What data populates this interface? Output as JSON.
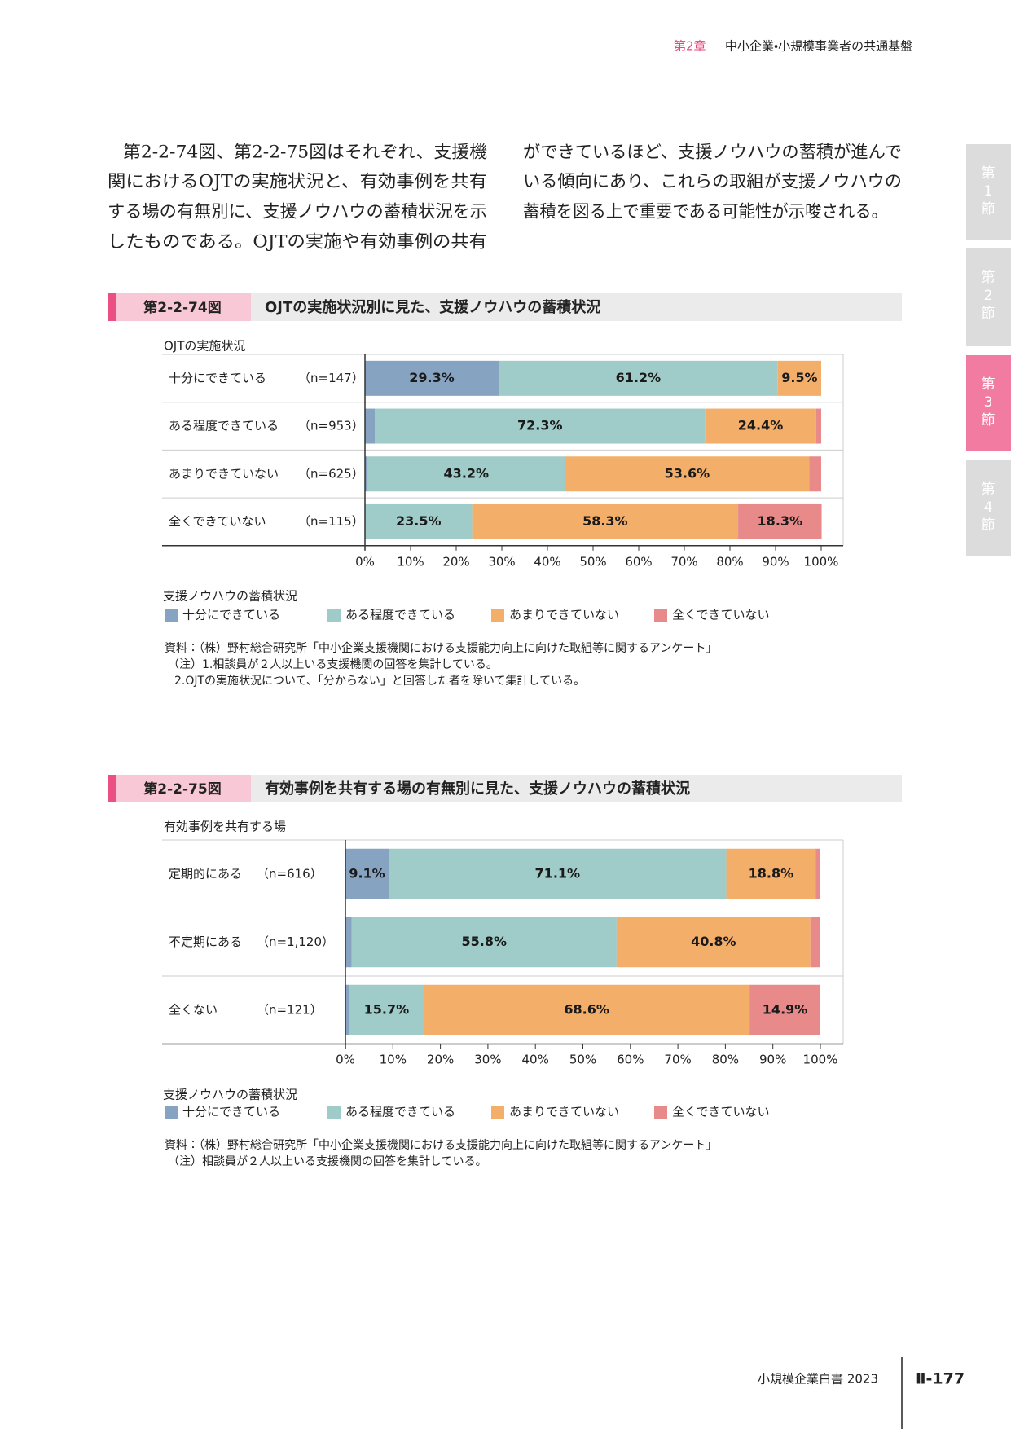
{
  "header": {
    "chapter": "第2章",
    "title": "中小企業・小規模事業者の共通基盤"
  },
  "body": {
    "left": [
      "第2-2-74図、第2-2-75図はそれぞれ、支援機",
      "関におけるOJTの実施状況と、有効事例を共有",
      "する場の有無別に、支援ノウハウの蓄積状況を示",
      "したものである。OJTの実施や有効事例の共有"
    ],
    "right": [
      "ができているほど、支援ノウハウの蓄積が進んで",
      "いる傾向にあり、これらの取組が支援ノウハウの",
      "蓄積を図る上で重要である可能性が示唆される。"
    ]
  },
  "side_tabs": [
    "第1節",
    "第2節",
    "第3節",
    "第4節"
  ],
  "chart_data": [
    {
      "type": "bar",
      "orientation": "horizontal",
      "stacked": true,
      "figure": "第2-2-74図",
      "title": "OJTの実施状況別に見た、支援ノウハウの蓄積状況",
      "category_axis_title": "OJTの実施状況",
      "categories": [
        "十分にできている",
        "ある程度できている",
        "あまりできていない",
        "全くできていない"
      ],
      "sample_sizes": [
        "（n=147）",
        "（n=953）",
        "（n=625）",
        "（n=115）"
      ],
      "series": [
        {
          "name": "十分にできている",
          "color": "#87a3c2",
          "values": [
            29.3,
            2.2,
            0.6,
            0
          ],
          "value_labels": [
            "29.3%",
            null,
            null,
            null
          ]
        },
        {
          "name": "ある程度できている",
          "color": "#9fcbc8",
          "values": [
            61.2,
            72.3,
            43.2,
            23.5
          ],
          "value_labels": [
            "61.2%",
            "72.3%",
            "43.2%",
            "23.5%"
          ]
        },
        {
          "name": "あまりできていない",
          "color": "#f3ae6a",
          "values": [
            9.5,
            24.4,
            53.6,
            58.3
          ],
          "value_labels": [
            "9.5%",
            "24.4%",
            "53.6%",
            "58.3%"
          ]
        },
        {
          "name": "全くできていない",
          "color": "#e88a8a",
          "values": [
            0,
            1.1,
            2.6,
            18.3
          ],
          "value_labels": [
            null,
            null,
            null,
            "18.3%"
          ]
        }
      ],
      "xlim": [
        0,
        100
      ],
      "xticks": [
        {
          "value": 0,
          "label": "0%"
        },
        {
          "value": 10,
          "label": "10%"
        },
        {
          "value": 20,
          "label": "20%"
        },
        {
          "value": 30,
          "label": "30%"
        },
        {
          "value": 40,
          "label": "40%"
        },
        {
          "value": 50,
          "label": "50%"
        },
        {
          "value": 60,
          "label": "60%"
        },
        {
          "value": 70,
          "label": "70%"
        },
        {
          "value": 80,
          "label": "80%"
        },
        {
          "value": 90,
          "label": "90%"
        },
        {
          "value": 100,
          "label": "100%"
        }
      ],
      "legend_title": "支援ノウハウの蓄積状況",
      "notes": [
        "資料：（株）野村総合研究所「中小企業支援機関における支援能力向上に向けた取組等に関するアンケート」",
        "（注）1.相談員が２人以上いる支援機関の回答を集計している。",
        "2.OJTの実施状況について、「分からない」と回答した者を除いて集計している。"
      ]
    },
    {
      "type": "bar",
      "orientation": "horizontal",
      "stacked": true,
      "figure": "第2-2-75図",
      "title": "有効事例を共有する場の有無別に見た、支援ノウハウの蓄積状況",
      "category_axis_title": "有効事例を共有する場",
      "categories": [
        "定期的にある",
        "不定期にある",
        "全くない"
      ],
      "sample_sizes": [
        "（n=616）",
        "（n=1,120）",
        "（n=121）"
      ],
      "series": [
        {
          "name": "十分にできている",
          "color": "#87a3c2",
          "values": [
            9.1,
            1.3,
            0.8
          ],
          "value_labels": [
            "9.1%",
            null,
            null
          ]
        },
        {
          "name": "ある程度できている",
          "color": "#9fcbc8",
          "values": [
            71.1,
            55.8,
            15.7
          ],
          "value_labels": [
            "71.1%",
            "55.8%",
            "15.7%"
          ]
        },
        {
          "name": "あまりできていない",
          "color": "#f3ae6a",
          "values": [
            18.8,
            40.8,
            68.6
          ],
          "value_labels": [
            "18.8%",
            "40.8%",
            "68.6%"
          ]
        },
        {
          "name": "全くできていない",
          "color": "#e88a8a",
          "values": [
            1.0,
            2.1,
            14.9
          ],
          "value_labels": [
            null,
            null,
            "14.9%"
          ]
        }
      ],
      "xlim": [
        0,
        100
      ],
      "xticks": [
        {
          "value": 0,
          "label": "0%"
        },
        {
          "value": 10,
          "label": "10%"
        },
        {
          "value": 20,
          "label": "20%"
        },
        {
          "value": 30,
          "label": "30%"
        },
        {
          "value": 40,
          "label": "40%"
        },
        {
          "value": 50,
          "label": "50%"
        },
        {
          "value": 60,
          "label": "60%"
        },
        {
          "value": 70,
          "label": "70%"
        },
        {
          "value": 80,
          "label": "80%"
        },
        {
          "value": 90,
          "label": "90%"
        },
        {
          "value": 100,
          "label": "100%"
        }
      ],
      "legend_title": "支援ノウハウの蓄積状況",
      "notes": [
        "資料：（株）野村総合研究所「中小企業支援機関における支援能力向上に向けた取組等に関するアンケート」",
        "（注）相談員が２人以上いる支援機関の回答を集計している。"
      ]
    }
  ],
  "footer": {
    "book": "小規模企業白書 2023",
    "page": "Ⅱ-177"
  }
}
